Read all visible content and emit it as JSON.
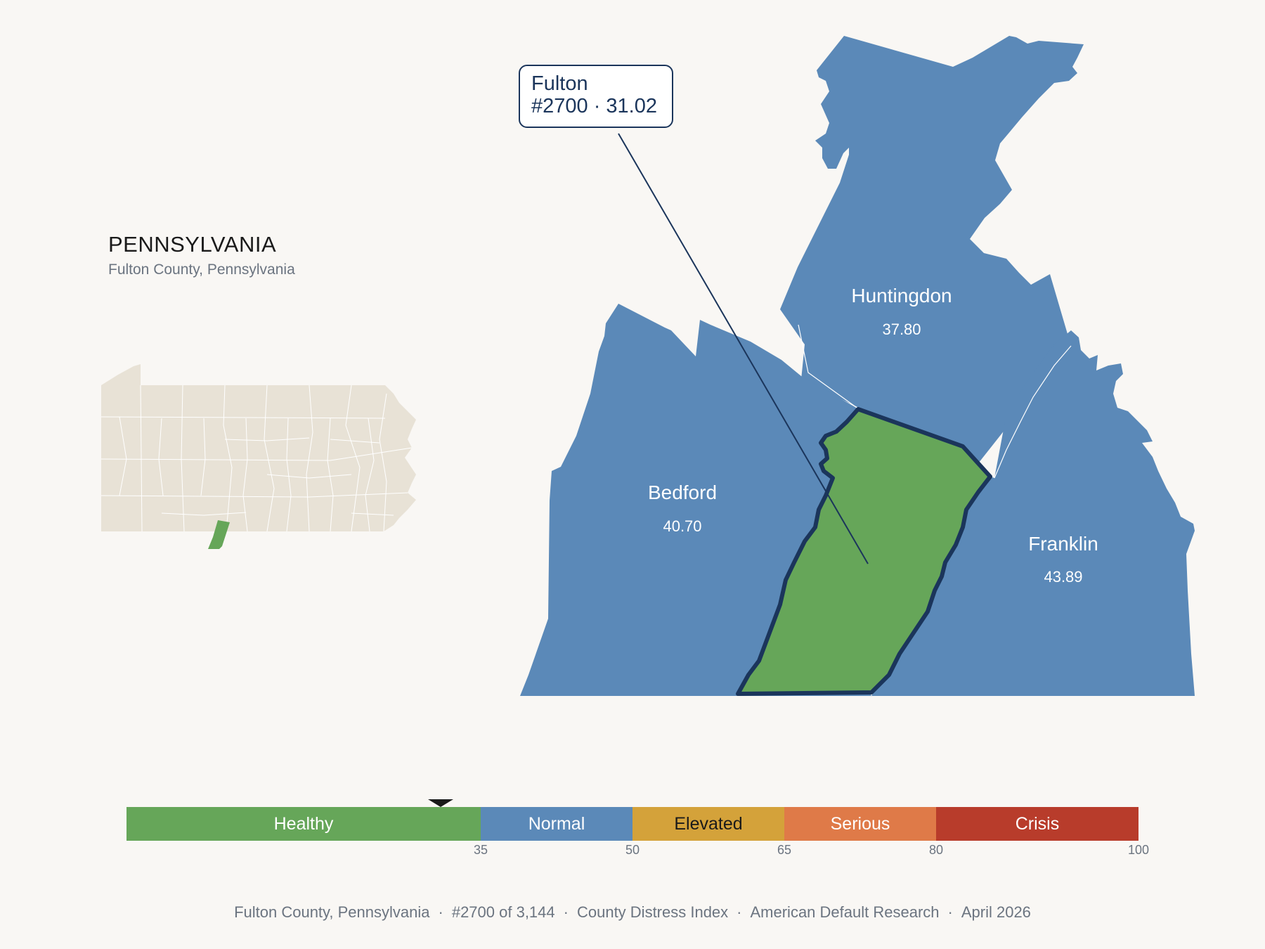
{
  "header": {
    "state_title": "PENNSYLVANIA",
    "subtitle": "Fulton County, Pennsylvania"
  },
  "callout": {
    "county": "Fulton",
    "detail": "#2700 · 31.02"
  },
  "counties": [
    {
      "name": "Huntingdon",
      "value": "37.80",
      "color": "#5b89b8"
    },
    {
      "name": "Bedford",
      "value": "40.70",
      "color": "#5b89b8"
    },
    {
      "name": "Franklin",
      "value": "43.89",
      "color": "#5b89b8"
    },
    {
      "name": "Fulton",
      "value": "31.02",
      "color": "#66a659",
      "highlighted": true
    }
  ],
  "locator": {
    "fill": "#e8e2d6",
    "highlight": "#66a659"
  },
  "scale": {
    "segments": [
      {
        "label": "Healthy",
        "from": 0,
        "to": 35,
        "color": "#66a659",
        "text_color": "#ffffff"
      },
      {
        "label": "Normal",
        "from": 35,
        "to": 50,
        "color": "#5b89b8",
        "text_color": "#ffffff"
      },
      {
        "label": "Elevated",
        "from": 50,
        "to": 65,
        "color": "#d4a23a",
        "text_color": "#1a1a1a"
      },
      {
        "label": "Serious",
        "from": 65,
        "to": 80,
        "color": "#df7a48",
        "text_color": "#ffffff"
      },
      {
        "label": "Crisis",
        "from": 80,
        "to": 100,
        "color": "#b83c2b",
        "text_color": "#ffffff"
      }
    ],
    "ticks": [
      "35",
      "50",
      "65",
      "80",
      "100"
    ],
    "marker_value": 31.02
  },
  "footer": {
    "county": "Fulton County, Pennsylvania",
    "rank": "#2700 of 3,144",
    "index": "County Distress Index",
    "source": "American Default Research",
    "date": "April 2026"
  }
}
